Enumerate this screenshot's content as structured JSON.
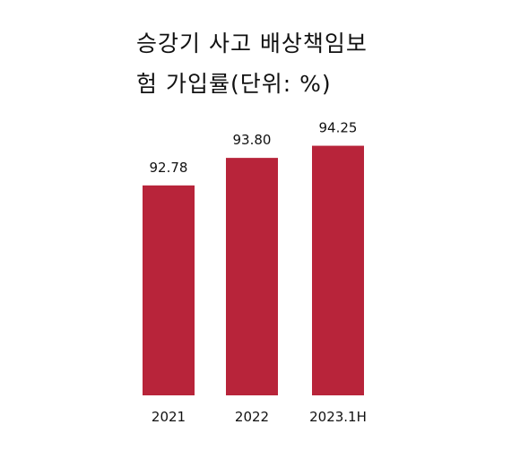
{
  "chart_data": {
    "type": "bar",
    "title_line1": "승강기 사고 배상책임보",
    "title_line2": "험 가입률(단위: %)",
    "categories": [
      "2021",
      "2022",
      "2023.1H"
    ],
    "values": [
      92.78,
      93.8,
      94.25
    ],
    "value_labels": [
      "92.78",
      "93.80",
      "94.25"
    ],
    "ylim": [
      85,
      95
    ],
    "grid": false,
    "legend": "none",
    "bar_color": "#b8243a"
  }
}
